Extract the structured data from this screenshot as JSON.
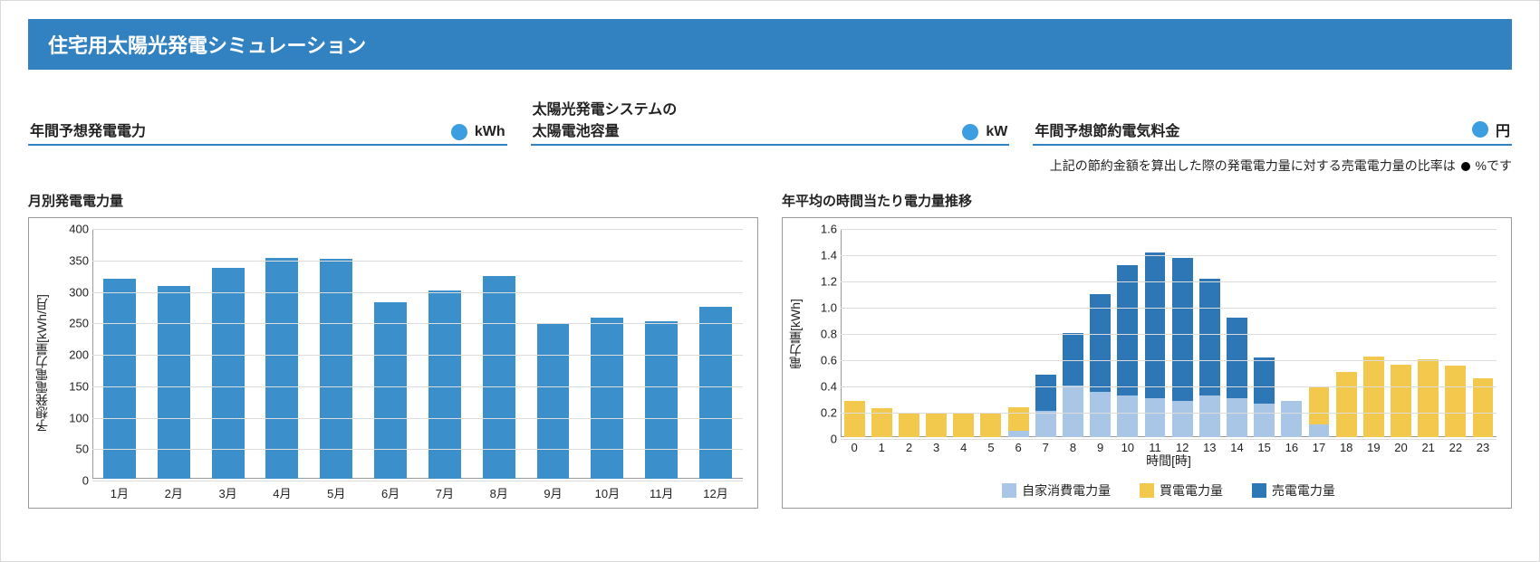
{
  "title": "住宅用太陽光発電シミュレーション",
  "colors": {
    "brand": "#3282c1",
    "dot": "#3c9de0",
    "frame": "#d9d9d9",
    "chart_border": "#9a9a9a",
    "grid": "#dcdcdc"
  },
  "summary": [
    {
      "label": "年間予想発電電力",
      "unit": "kWh"
    },
    {
      "label": "太陽光発電システムの\n太陽電池容量",
      "unit": "kW"
    },
    {
      "label": "年間予想節約電気料金",
      "unit": "円"
    }
  ],
  "note": {
    "prefix": "上記の節約金額を算出した際の発電電力量に対する売電電力量の比率は",
    "suffix": "%です"
  },
  "chart_left": {
    "title": "月別発電電力量",
    "type": "bar",
    "ylabel": "予想発電電力量[kWh/月]",
    "ylim": [
      0,
      400
    ],
    "ytick_step": 50,
    "bar_color": "#3b8fcb",
    "categories": [
      "1月",
      "2月",
      "3月",
      "4月",
      "5月",
      "6月",
      "7月",
      "8月",
      "9月",
      "10月",
      "11月",
      "12月"
    ],
    "values": [
      320,
      308,
      338,
      353,
      352,
      282,
      302,
      325,
      250,
      258,
      252,
      275
    ]
  },
  "chart_right": {
    "title": "年平均の時間当たり電力量推移",
    "type": "stacked-bar",
    "ylabel": "電力量[kWh]",
    "xlabel": "時間[時]",
    "ylim": [
      0,
      1.6
    ],
    "ytick_step": 0.2,
    "hours": [
      "0",
      "1",
      "2",
      "3",
      "4",
      "5",
      "6",
      "7",
      "8",
      "9",
      "10",
      "11",
      "12",
      "13",
      "14",
      "15",
      "16",
      "17",
      "18",
      "19",
      "20",
      "21",
      "22",
      "23"
    ],
    "series": {
      "self": {
        "label": "自家消費電力量",
        "color": "#a9c6e6",
        "values": [
          0,
          0,
          0,
          0,
          0,
          0,
          0.05,
          0.2,
          0.4,
          0.35,
          0.32,
          0.3,
          0.28,
          0.32,
          0.3,
          0.26,
          0.28,
          0.1,
          0,
          0,
          0,
          0,
          0,
          0
        ]
      },
      "buy": {
        "label": "買電電力量",
        "color": "#f2c94c",
        "values": [
          0.28,
          0.22,
          0.19,
          0.18,
          0.18,
          0.18,
          0.18,
          0,
          0,
          0,
          0,
          0,
          0,
          0,
          0,
          0,
          0,
          0.28,
          0.5,
          0.62,
          0.56,
          0.6,
          0.55,
          0.45
        ]
      },
      "sell": {
        "label": "売電電力量",
        "color": "#2e77b6",
        "values": [
          0,
          0,
          0,
          0,
          0,
          0,
          0,
          0.28,
          0.4,
          0.75,
          1.0,
          1.12,
          1.1,
          0.9,
          0.62,
          0.35,
          0,
          0,
          0,
          0,
          0,
          0,
          0,
          0
        ]
      }
    },
    "stack_order": [
      "self",
      "buy",
      "sell"
    ]
  }
}
